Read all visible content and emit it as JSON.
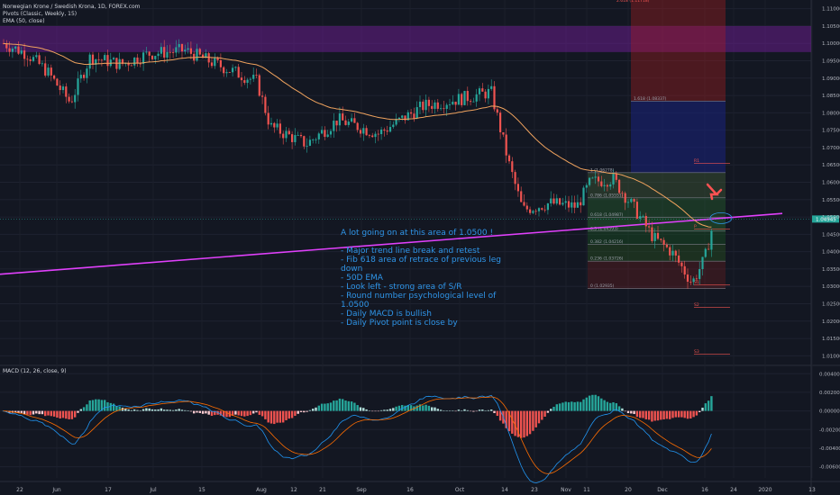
{
  "header": {
    "symbol": "Norwegian Krone / Swedish Krona, 1D, FOREX.com",
    "pivots": "Pivots (Classic, Weekly, 15)",
    "ema": "EMA (50, close)",
    "macd": "MACD (12, 26, close, 9)"
  },
  "annotation": {
    "title": "A lot going on at this area of 1.0500 !",
    "lines": [
      "- Major trend line break and retest",
      "- Fib 618 area of retrace of previous leg down",
      "- 50D EMA",
      "- Look left - strong area of S/R",
      "- Round number psychological level of 1.0500",
      "- Daily MACD is bullish",
      "- Daily Pivot point is close by"
    ]
  },
  "colors": {
    "background": "#131722",
    "up": "#26a69a",
    "down": "#ef5350",
    "ema": "#f0a35e",
    "trendline": "#e040fb",
    "purple_zone": "#7b1fa2",
    "macd_line": "#2196f3",
    "signal_line": "#ff6d00",
    "annotation": "#2f95e8",
    "arrow": "#ff5252"
  },
  "chart_data": [
    {
      "type": "candlestick",
      "title": "Norwegian Krone / Swedish Krona, 1D, FOREX.com",
      "x_tick_labels": [
        "22",
        "Jun",
        "17",
        "Jul",
        "15",
        "Aug",
        "12",
        "21",
        "Sep",
        "16",
        "Oct",
        "14",
        "23",
        "Nov",
        "11",
        "20",
        "Dec",
        "16",
        "24",
        "2020",
        "13"
      ],
      "y_ticks": [
        1.01,
        1.015,
        1.02,
        1.025,
        1.03,
        1.035,
        1.04,
        1.045,
        1.05,
        1.055,
        1.06,
        1.065,
        1.07,
        1.075,
        1.08,
        1.085,
        1.09,
        1.095,
        1.1,
        1.105,
        1.11
      ],
      "y_tick_labels": [
        "1.01000",
        "1.01500",
        "1.02000",
        "1.02500",
        "1.03000",
        "1.03500",
        "1.04000",
        "1.04500",
        "1.05000",
        "1.05500",
        "1.06000",
        "1.06500",
        "1.07000",
        "1.07500",
        "1.08000",
        "1.08500",
        "1.09000",
        "1.09500",
        "1.10000",
        "1.10500",
        "1.11000"
      ],
      "ylim": [
        1.0075,
        1.1125
      ],
      "last_price": {
        "value": 1.0494,
        "label": "1.04945"
      },
      "key_points": [
        {
          "label": "late May",
          "close": 1.099
        },
        {
          "label": "mid Jun",
          "close": 1.083
        },
        {
          "label": "early Jul",
          "close": 1.098
        },
        {
          "label": "Aug",
          "close": 1.071
        },
        {
          "label": "Sep peak",
          "high": 1.0915
        },
        {
          "label": "early Oct",
          "close": 1.087
        },
        {
          "label": "mid Oct",
          "close": 1.052
        },
        {
          "label": "early Nov",
          "close": 1.061
        },
        {
          "label": "Dec low",
          "low": 1.0295
        },
        {
          "label": "late Dec",
          "close": 1.0494
        }
      ],
      "fibonacci": [
        {
          "ratio": "0",
          "label": "0 (1.02935)",
          "value": 1.02935
        },
        {
          "ratio": "0.236",
          "label": "0.236 (1.03726)",
          "value": 1.03726
        },
        {
          "ratio": "0.382",
          "label": "0.382 (1.04216)",
          "value": 1.04216
        },
        {
          "ratio": "0.5",
          "label": "0.5 (1.04593)",
          "value": 1.04593
        },
        {
          "ratio": "0.618",
          "label": "0.618 (1.04987)",
          "value": 1.04987
        },
        {
          "ratio": "0.786",
          "label": "0.786 (1.05551)",
          "value": 1.05551
        },
        {
          "ratio": "1",
          "label": "1 (1.06278)",
          "value": 1.06278
        },
        {
          "ratio": "1.618",
          "label": "1.618 (1.08337)",
          "value": 1.08337
        },
        {
          "ratio": "2.618",
          "label": "2.618 (1.11718)",
          "value": 1.11718
        }
      ],
      "pivots": [
        {
          "label": "R1",
          "value": 1.0655
        },
        {
          "label": "P",
          "value": 1.0465
        },
        {
          "label": "S1",
          "value": 1.0305
        },
        {
          "label": "S2",
          "value": 1.024
        },
        {
          "label": "S3",
          "value": 1.0105
        }
      ],
      "resistance_zone": {
        "from": 1.0975,
        "to": 1.105
      },
      "trendline": {
        "from": 1.0335,
        "to": 1.051
      },
      "grid": true,
      "legend_position": "top-left"
    },
    {
      "type": "bar",
      "title": "MACD (12, 26, close, 9)",
      "y_ticks": [
        -0.006,
        -0.004,
        -0.002,
        0,
        0.002,
        0.004
      ],
      "y_tick_labels": [
        "-0.00600",
        "-0.00400",
        "-0.00200",
        "0.00000",
        "0.00200",
        "0.00400"
      ],
      "ylim": [
        -0.0072,
        0.0048
      ],
      "latest_histogram": 0.0021,
      "series": [
        {
          "name": "Histogram"
        },
        {
          "name": "MACD"
        },
        {
          "name": "Signal"
        }
      ]
    }
  ]
}
